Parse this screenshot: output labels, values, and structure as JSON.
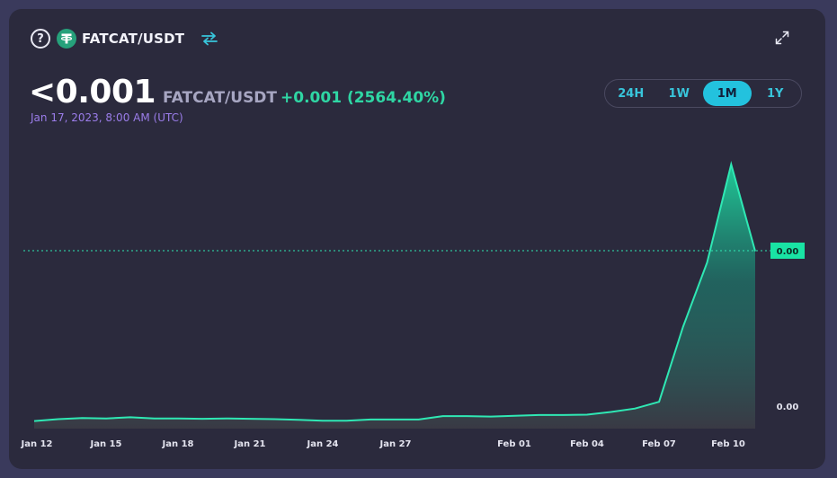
{
  "header": {
    "pair_title": "FATCAT/USDT",
    "help_icon": "question-circle-icon",
    "token_icon": "tether-logo-icon",
    "swap_icon": "swap-arrows-icon",
    "expand_icon": "expand-icon"
  },
  "price": {
    "value": "<0.001",
    "pair": "FATCAT/USDT",
    "change": "+0.001 (2564.40%)",
    "timestamp": "Jan 17, 2023, 8:00 AM (UTC)"
  },
  "ranges": [
    {
      "label": "24H",
      "active": false
    },
    {
      "label": "1W",
      "active": false
    },
    {
      "label": "1M",
      "active": true
    },
    {
      "label": "1Y",
      "active": false
    }
  ],
  "colors": {
    "accent": "#23c2de",
    "line": "#2fe8b4",
    "positive": "#2fd6a4",
    "timestamp": "#9b7dea"
  },
  "chart_data": {
    "type": "area",
    "x_tick_labels": [
      "Jan 12",
      "Jan 15",
      "Jan 18",
      "Jan 21",
      "Jan 24",
      "Jan 27",
      "Feb 01",
      "Feb 04",
      "Feb 07",
      "Feb 10"
    ],
    "current_value_label": "0.00",
    "y_baseline_label": "0.00",
    "values": [
      0.02,
      0.025,
      0.028,
      0.027,
      0.03,
      0.027,
      0.027,
      0.026,
      0.027,
      0.026,
      0.025,
      0.023,
      0.021,
      0.021,
      0.024,
      0.024,
      0.024,
      0.033,
      0.033,
      0.032,
      0.034,
      0.036,
      0.036,
      0.037,
      0.044,
      0.053,
      0.071,
      0.27,
      0.44,
      0.7,
      0.47
    ],
    "ylim": [
      0,
      0.75
    ],
    "grid": false
  }
}
